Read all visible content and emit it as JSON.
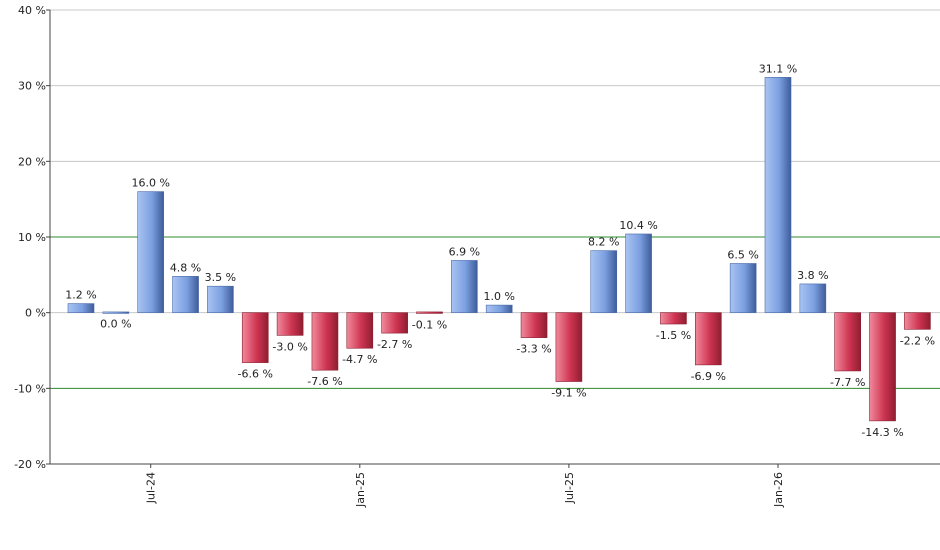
{
  "chart_data": {
    "type": "bar",
    "categories": [
      "2024-05",
      "2024-06",
      "2024-07",
      "2024-08",
      "2024-09",
      "2024-10",
      "2024-11",
      "2024-12",
      "2025-01",
      "2025-02",
      "2025-03",
      "2025-04",
      "2025-05",
      "2025-06",
      "2025-07",
      "2025-08",
      "2025-09",
      "2025-10",
      "2025-11",
      "2025-12",
      "2026-01",
      "2026-02",
      "2026-03",
      "2026-04",
      "2026-05"
    ],
    "values": [
      1.2,
      0.0,
      16.0,
      4.8,
      3.5,
      -6.6,
      -3.0,
      -7.6,
      -4.7,
      -2.7,
      -0.1,
      6.9,
      1.0,
      -3.3,
      -9.1,
      8.2,
      10.4,
      -1.5,
      -6.9,
      6.5,
      31.1,
      3.8,
      -7.7,
      -14.3,
      -2.2
    ],
    "value_labels": [
      "1.2 %",
      "0.0 %",
      "16.0 %",
      "4.8 %",
      "3.5 %",
      "-6.6 %",
      "-3.0 %",
      "-7.6 %",
      "-4.7 %",
      "-2.7 %",
      "-0.1 %",
      "6.9 %",
      "1.0 %",
      "-3.3 %",
      "-9.1 %",
      "8.2 %",
      "10.4 %",
      "-1.5 %",
      "-6.9 %",
      "6.5 %",
      "31.1 %",
      "3.8 %",
      "-7.7 %",
      "-14.3 %",
      "-2.2 %"
    ],
    "ylim": [
      -20,
      40
    ],
    "yticks": [
      -20,
      -10,
      0,
      10,
      20,
      30,
      40
    ],
    "ytick_labels": [
      "-20 %",
      "-10 %",
      "0 %",
      "10 %",
      "20 %",
      "30 %",
      "40 %"
    ],
    "xticks": [
      {
        "at": "2024-07",
        "label": "Jul-24"
      },
      {
        "at": "2025-01",
        "label": "Jan-25"
      },
      {
        "at": "2025-07",
        "label": "Jul-25"
      },
      {
        "at": "2026-01",
        "label": "Jan-26"
      }
    ],
    "reference_lines": [
      10,
      -10
    ],
    "grid": true,
    "colors": {
      "positive": "#7a9ee0",
      "negative": "#c8334f",
      "grid": "#c8c8c8",
      "reference": "#2e8b2e",
      "axis": "#444444"
    }
  }
}
